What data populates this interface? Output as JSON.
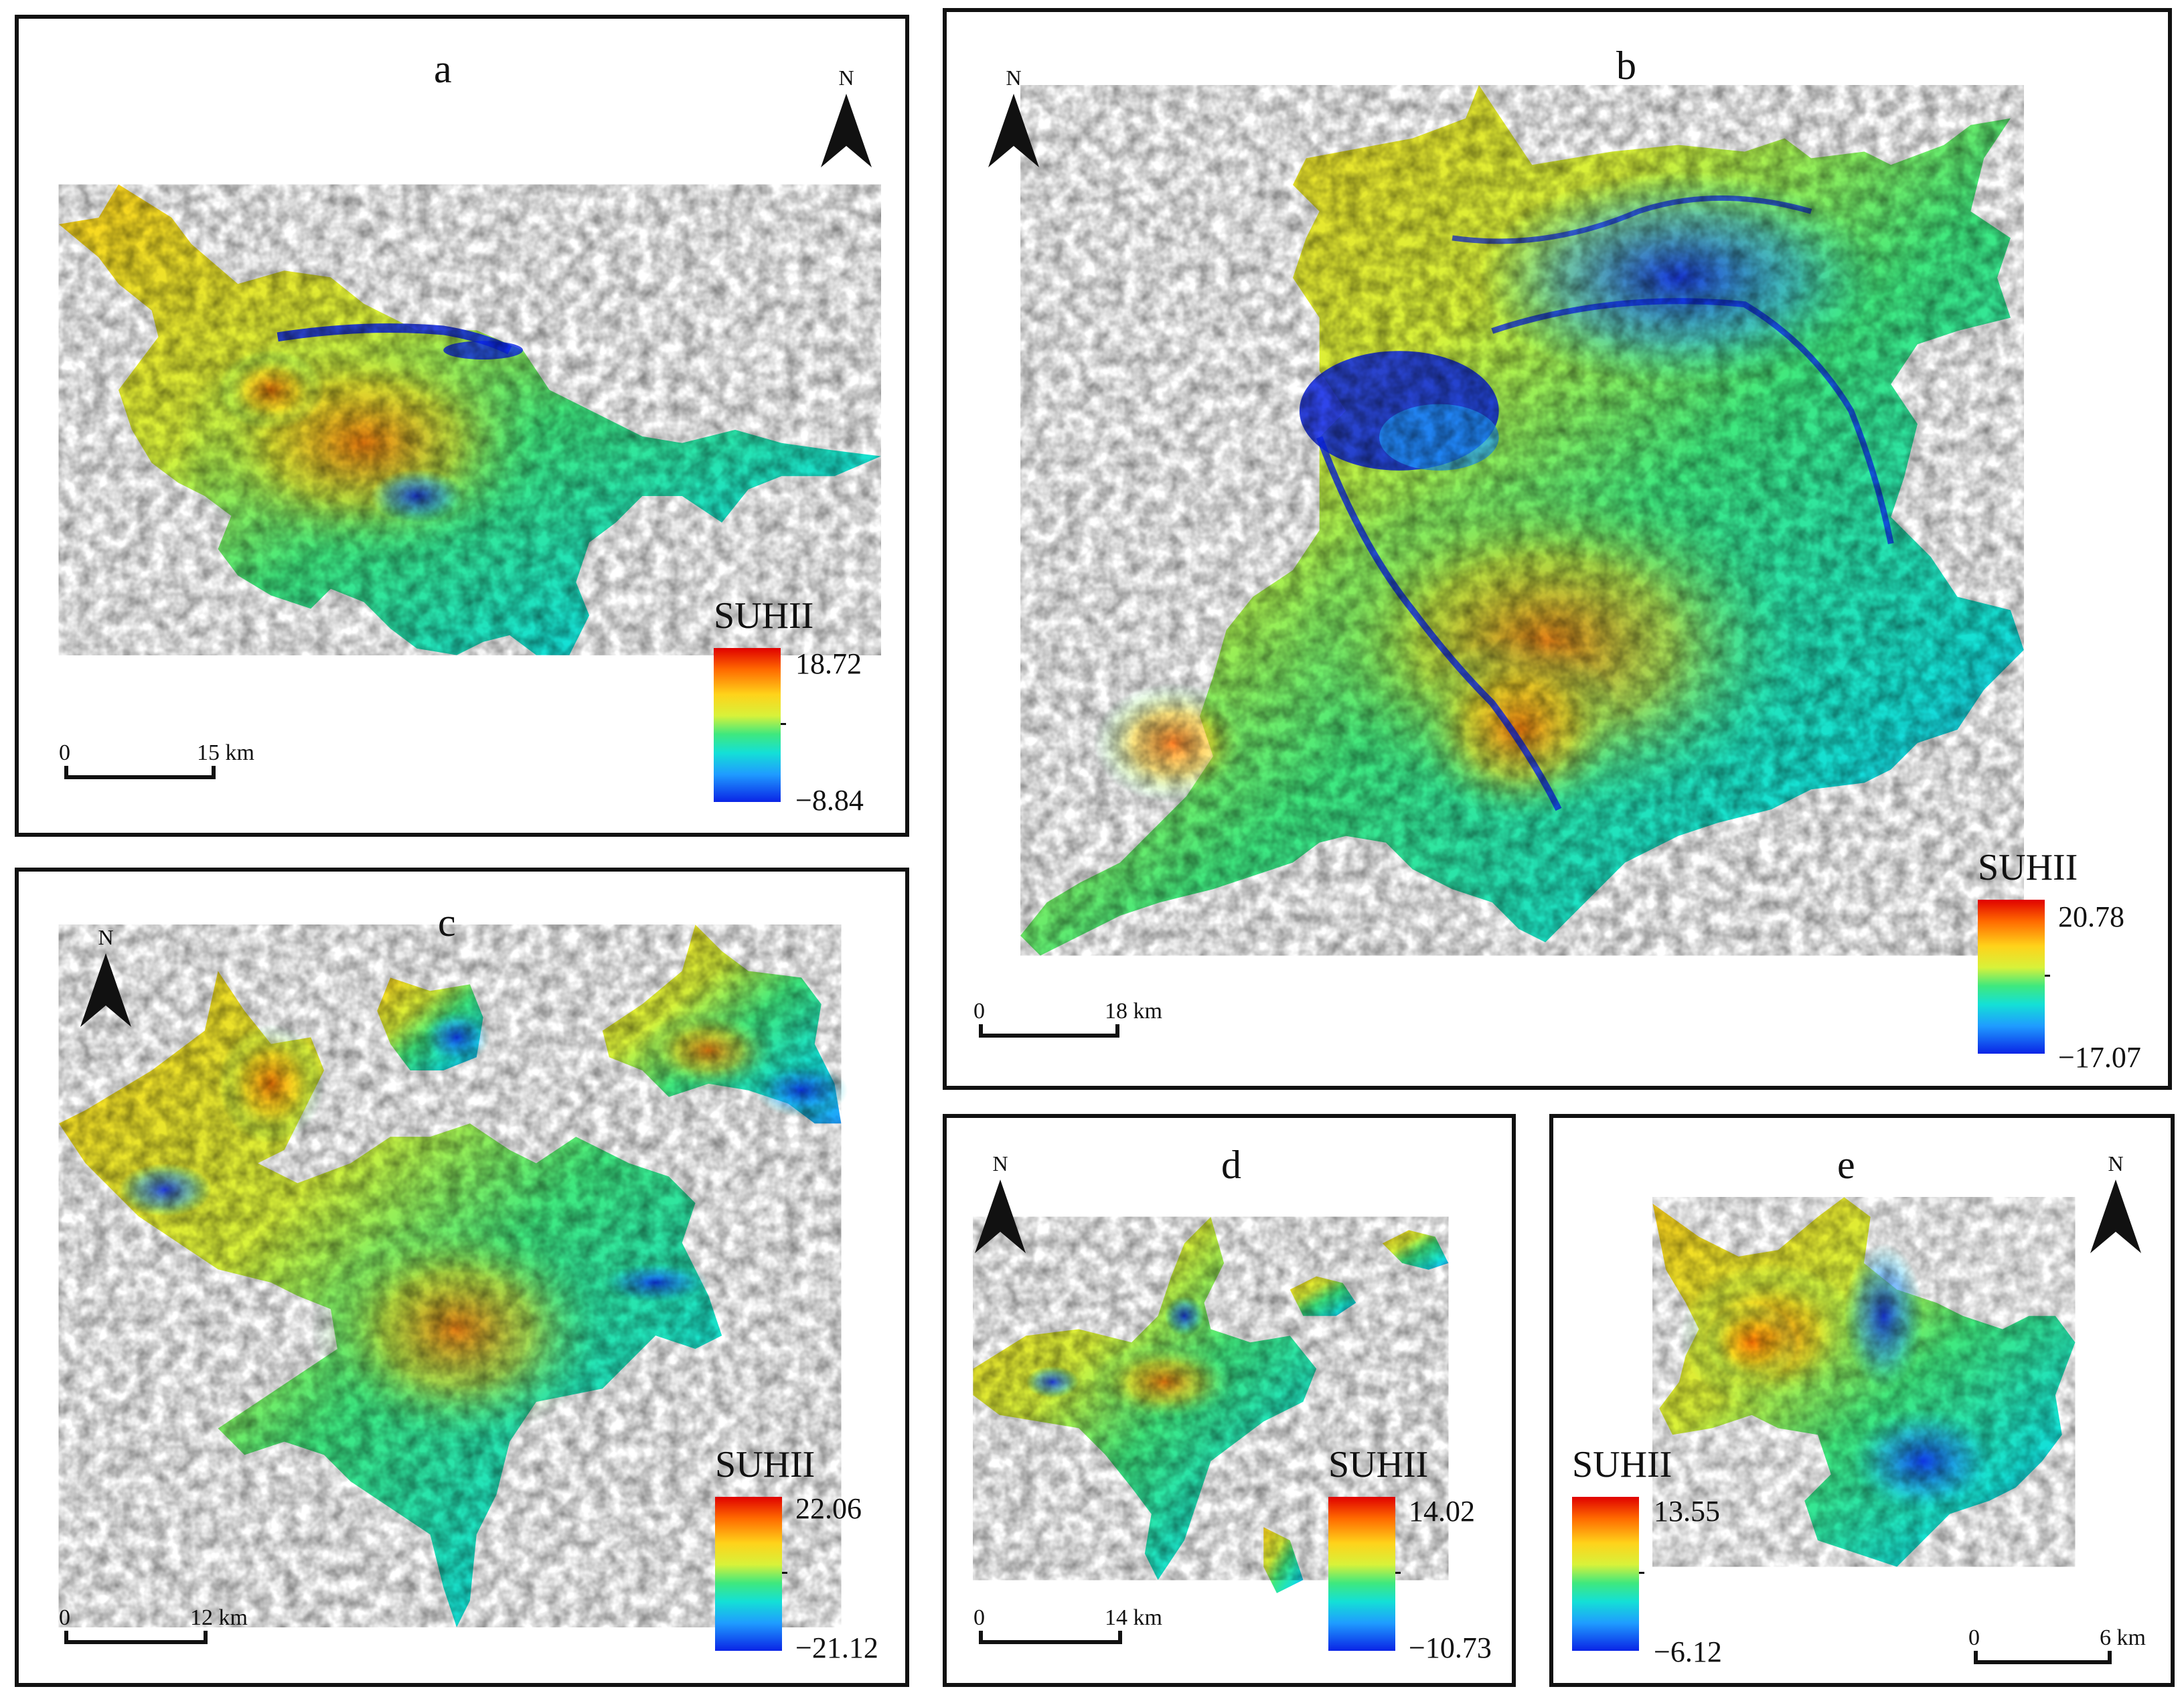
{
  "panels": [
    {
      "label": "a",
      "legend_title": "SUHII",
      "max": "18.72",
      "min": "−8.84",
      "scale_zero": "0",
      "scale_dist": "15 km",
      "north": "N"
    },
    {
      "label": "b",
      "legend_title": "SUHII",
      "max": "20.78",
      "min": "−17.07",
      "scale_zero": "0",
      "scale_dist": "18 km",
      "north": "N"
    },
    {
      "label": "c",
      "legend_title": "SUHII",
      "max": "22.06",
      "min": "−21.12",
      "scale_zero": "0",
      "scale_dist": "12 km",
      "north": "N"
    },
    {
      "label": "d",
      "legend_title": "SUHII",
      "max": "14.02",
      "min": "−10.73",
      "scale_zero": "0",
      "scale_dist": "14 km",
      "north": "N"
    },
    {
      "label": "e",
      "legend_title": "SUHII",
      "max": "13.55",
      "min": "−6.12",
      "scale_zero": "0",
      "scale_dist": "6 km",
      "north": "N"
    }
  ],
  "colors": {
    "high": "#e00000",
    "mid_high": "#ffd21a",
    "mid": "#3fe87e",
    "mid_low": "#14e0d6",
    "low": "#0a24e6",
    "frame": "#111111"
  }
}
